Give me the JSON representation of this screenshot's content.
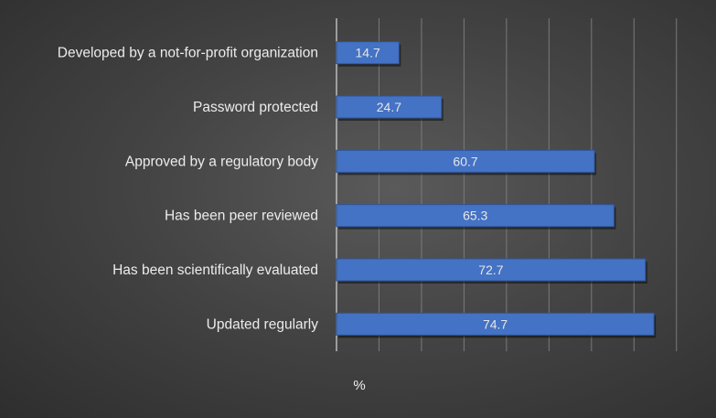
{
  "chart_data": {
    "type": "bar",
    "orientation": "horizontal",
    "categories": [
      "Developed by a not-for-profit organization",
      "Password protected",
      "Approved by a regulatory body",
      "Has been peer reviewed",
      "Has been scientifically evaluated",
      "Updated regularly"
    ],
    "values": [
      14.7,
      24.7,
      60.7,
      65.3,
      72.7,
      74.7
    ],
    "value_labels": [
      "14.7",
      "24.7",
      "60.7",
      "65.3",
      "72.7",
      "74.7"
    ],
    "title": "",
    "xlabel": "%",
    "ylabel": "",
    "xlim": [
      0,
      85
    ],
    "grid": "vertical",
    "legend": "none",
    "colors": {
      "bar": "#4472c4",
      "bar_edge": "#2f5597",
      "grid": "#7a7a7a",
      "text": "#ececec"
    }
  }
}
